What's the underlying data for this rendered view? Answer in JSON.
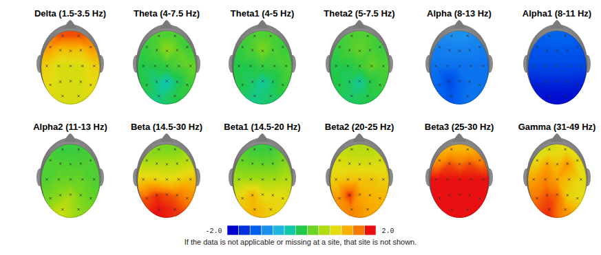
{
  "chart_data": {
    "type": "topographic_map",
    "panels": [
      {
        "title": "Delta (1.5-3.5 Hz)",
        "values": [
          1.8,
          1.8,
          1.5,
          1.2,
          1.2,
          1.2,
          1.5,
          1.1,
          0.9,
          0.9,
          0.9,
          1.1,
          1.0,
          0.9,
          0.9,
          0.9,
          1.0,
          0.9,
          0.9
        ]
      },
      {
        "title": "Theta (4-7.5 Hz)",
        "values": [
          0.2,
          0.2,
          0.1,
          0.2,
          0.5,
          0.3,
          0.1,
          0.0,
          0.0,
          0.1,
          0.2,
          0.3,
          0.0,
          -0.2,
          -0.4,
          -0.1,
          0.1,
          -0.2,
          0.0
        ]
      },
      {
        "title": "Theta1 (4-5 Hz)",
        "values": [
          0.2,
          0.2,
          0.1,
          0.2,
          0.4,
          0.2,
          0.1,
          0.0,
          0.0,
          0.1,
          0.1,
          0.2,
          0.0,
          -0.1,
          -0.3,
          -0.1,
          0.1,
          -0.2,
          -0.1
        ]
      },
      {
        "title": "Theta2 (5-7.5 Hz)",
        "values": [
          0.2,
          0.2,
          0.1,
          0.2,
          0.3,
          0.2,
          0.1,
          0.0,
          0.0,
          0.1,
          0.3,
          0.2,
          0.0,
          -0.1,
          -0.3,
          0.0,
          0.1,
          -0.1,
          0.0
        ]
      },
      {
        "title": "Alpha (8-13 Hz)",
        "values": [
          -1.0,
          -1.0,
          -1.1,
          -1.1,
          -1.1,
          -1.1,
          -1.1,
          -1.2,
          -1.2,
          -1.2,
          -1.2,
          -1.2,
          -1.3,
          -1.5,
          -1.3,
          -1.2,
          -1.2,
          -1.4,
          -1.2
        ]
      },
      {
        "title": "Alpha1 (8-11 Hz)",
        "values": [
          -1.3,
          -1.3,
          -1.4,
          -1.4,
          -1.4,
          -1.4,
          -1.4,
          -1.5,
          -1.5,
          -1.5,
          -1.5,
          -1.5,
          -1.8,
          -1.7,
          -1.7,
          -1.7,
          -1.8,
          -1.9,
          -1.9
        ]
      },
      {
        "title": "Alpha2 (11-13 Hz)",
        "values": [
          0.1,
          0.1,
          0.2,
          0.2,
          0.2,
          0.2,
          0.2,
          0.2,
          0.3,
          0.3,
          0.3,
          0.2,
          0.4,
          0.5,
          0.6,
          0.4,
          0.3,
          0.8,
          0.5
        ]
      },
      {
        "title": "Beta (14.5-30 Hz)",
        "values": [
          0.4,
          0.4,
          0.6,
          0.7,
          0.7,
          0.7,
          0.7,
          1.1,
          1.1,
          1.0,
          1.1,
          1.2,
          1.8,
          1.9,
          1.8,
          1.7,
          1.6,
          2.0,
          1.9
        ]
      },
      {
        "title": "Beta1 (14.5-20 Hz)",
        "values": [
          0.1,
          0.1,
          0.3,
          0.3,
          0.3,
          0.3,
          0.4,
          0.6,
          0.6,
          0.6,
          0.6,
          0.7,
          1.1,
          1.3,
          1.0,
          1.0,
          1.0,
          1.3,
          1.1
        ]
      },
      {
        "title": "Beta2 (20-25 Hz)",
        "values": [
          0.7,
          0.7,
          0.9,
          0.9,
          0.9,
          0.9,
          0.9,
          1.1,
          1.2,
          1.2,
          1.2,
          1.1,
          1.5,
          1.9,
          1.4,
          1.3,
          1.3,
          1.6,
          1.4
        ]
      },
      {
        "title": "Beta3 (25-30 Hz)",
        "values": [
          1.3,
          1.3,
          1.5,
          1.8,
          1.7,
          1.8,
          1.6,
          2.0,
          2.0,
          2.0,
          2.0,
          2.0,
          2.0,
          2.0,
          2.0,
          2.0,
          2.0,
          2.0,
          2.0
        ]
      },
      {
        "title": "Gamma (31-49 Hz)",
        "values": [
          0.9,
          1.0,
          1.0,
          1.4,
          1.2,
          1.5,
          1.0,
          1.4,
          1.6,
          1.4,
          1.2,
          1.0,
          1.7,
          1.8,
          1.7,
          1.1,
          1.0,
          1.9,
          1.5
        ]
      }
    ],
    "color_range": [
      -2.0,
      2.0
    ],
    "color_ticks": [
      {
        "value": -2.0,
        "label": "-2.0"
      },
      {
        "value": 2.0,
        "label": "2.0"
      }
    ],
    "colors": [
      "#0000cc",
      "#0030dd",
      "#0060ee",
      "#1c8fee",
      "#1cb8e0",
      "#10c8a8",
      "#22c84a",
      "#6cd422",
      "#b0dc10",
      "#e6dc10",
      "#f8b000",
      "#f87800",
      "#e81010"
    ],
    "caption": "If the data is not applicable or missing at a site, that site is not shown."
  }
}
